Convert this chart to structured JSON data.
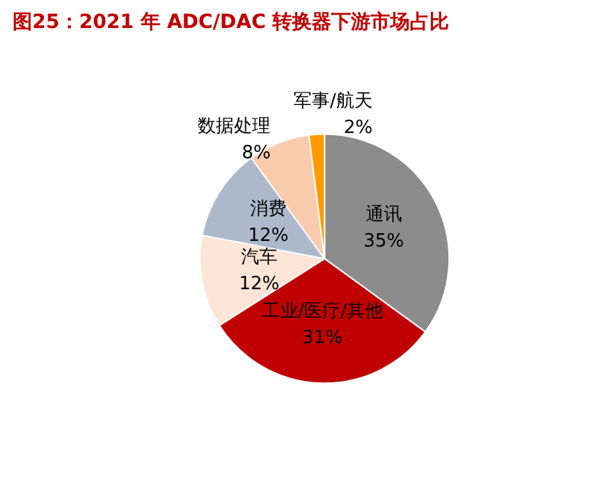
{
  "chart_data": {
    "type": "pie",
    "title": "图25：2021 年 ADC/DAC 转换器下游市场占比",
    "categories": [
      "通讯",
      "工业/医疗/其他",
      "汽车",
      "消费",
      "数据处理",
      "军事/航天"
    ],
    "values": [
      35,
      31,
      12,
      12,
      8,
      2
    ],
    "value_labels": [
      "35%",
      "31%",
      "12%",
      "12%",
      "8%",
      "2%"
    ],
    "colors": [
      "#8c8c8c",
      "#c00000",
      "#fce4d6",
      "#adb9ca",
      "#f8cbad",
      "#ff9900"
    ],
    "legend": false
  }
}
